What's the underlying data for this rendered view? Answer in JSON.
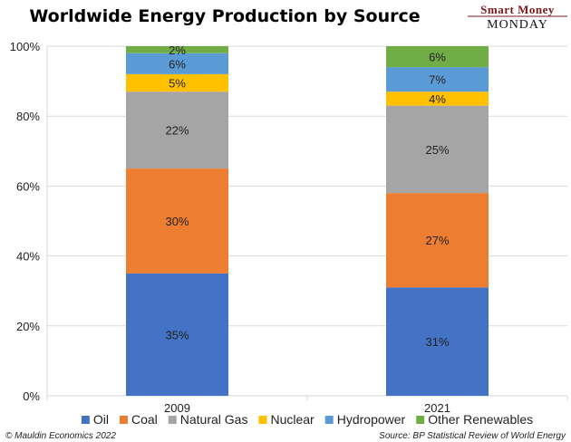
{
  "chart_data": {
    "type": "bar",
    "stacked": true,
    "title": "Worldwide Energy Production by Source",
    "categories": [
      "2009",
      "2021"
    ],
    "series": [
      {
        "name": "Oil",
        "color": "#4472C4",
        "values": [
          35,
          31
        ],
        "labels": [
          "35%",
          "31%"
        ]
      },
      {
        "name": "Coal",
        "color": "#ED7D31",
        "values": [
          30,
          27
        ],
        "labels": [
          "30%",
          "27%"
        ]
      },
      {
        "name": "Natural Gas",
        "color": "#A5A5A5",
        "values": [
          22,
          25
        ],
        "labels": [
          "22%",
          "25%"
        ]
      },
      {
        "name": "Nuclear",
        "color": "#FFC000",
        "values": [
          5,
          4
        ],
        "labels": [
          "5%",
          "4%"
        ]
      },
      {
        "name": "Hydropower",
        "color": "#5B9BD5",
        "values": [
          6,
          7
        ],
        "labels": [
          "6%",
          "7%"
        ]
      },
      {
        "name": "Other Renewables",
        "color": "#70AD47",
        "values": [
          2,
          6
        ],
        "labels": [
          "2%",
          "6%"
        ]
      }
    ],
    "y_ticks": [
      "0%",
      "20%",
      "40%",
      "60%",
      "80%",
      "100%"
    ],
    "ylim": [
      0,
      100
    ],
    "grid": "horizontal",
    "legend_position": "bottom"
  },
  "brand": {
    "line1": "Smart Money",
    "line2": "MONDAY"
  },
  "footer": {
    "left": "© Mauldin Economics 2022",
    "right": "Source: BP Statistical Review of World Energy"
  }
}
